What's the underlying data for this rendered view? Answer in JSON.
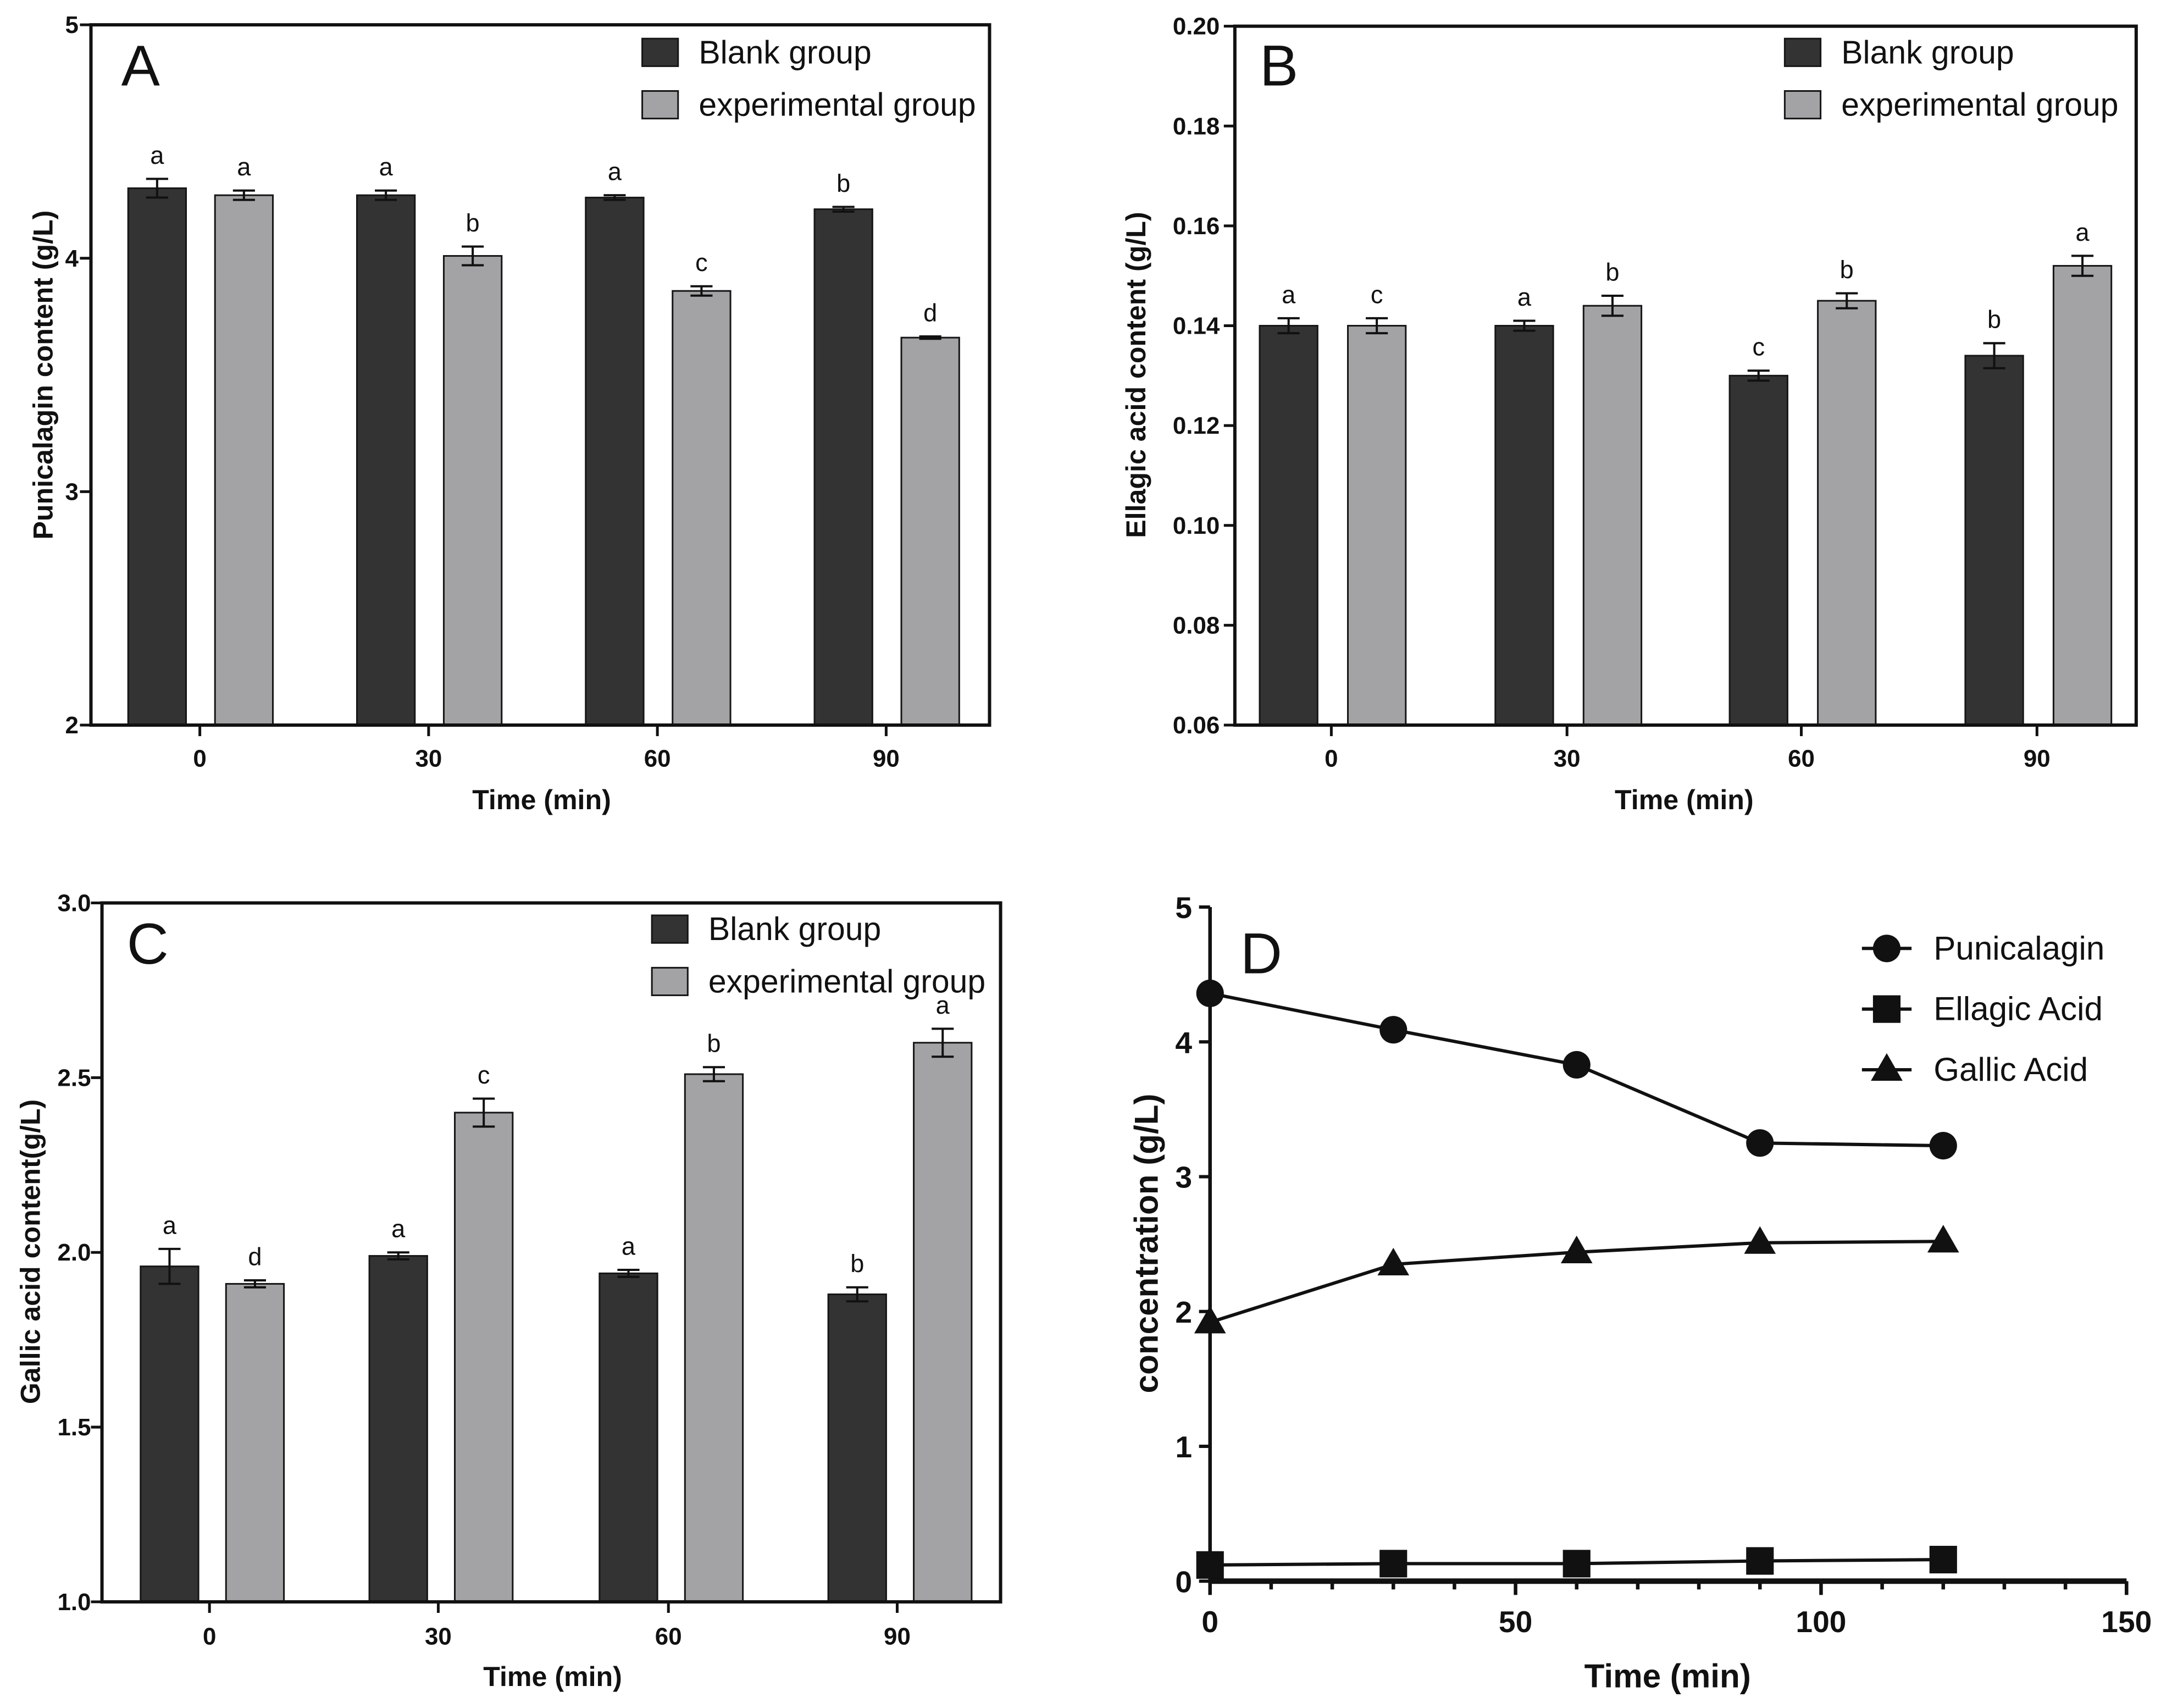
{
  "chart_data": [
    {
      "panel_label": "A",
      "type": "bar",
      "xlabel": "Time (min)",
      "ylabel": "Punicalagin content (g/L)",
      "ylim": [
        2,
        5
      ],
      "yticks": [
        "2",
        "3",
        "4",
        "5"
      ],
      "categories": [
        "0",
        "30",
        "60",
        "90"
      ],
      "series": [
        {
          "name": "Blank group",
          "color": "#333333",
          "values": [
            4.3,
            4.27,
            4.26,
            4.21
          ],
          "errors": [
            0.04,
            0.02,
            0.01,
            0.01
          ],
          "letters": [
            "a",
            "a",
            "a",
            "b"
          ]
        },
        {
          "name": "experimental group",
          "color": "#a3a3a5",
          "values": [
            4.27,
            4.01,
            3.86,
            3.66
          ],
          "errors": [
            0.02,
            0.04,
            0.02,
            0.005
          ],
          "letters": [
            "a",
            "b",
            "c",
            "d"
          ]
        }
      ]
    },
    {
      "panel_label": "B",
      "type": "bar",
      "xlabel": "Time (min)",
      "ylabel": "Ellagic acid content (g/L)",
      "ylim": [
        0.06,
        0.2
      ],
      "yticks": [
        "0.06",
        "0.08",
        "0.10",
        "0.12",
        "0.14",
        "0.16",
        "0.18",
        "0.20"
      ],
      "categories": [
        "0",
        "30",
        "60",
        "90"
      ],
      "series": [
        {
          "name": "Blank group",
          "color": "#333333",
          "values": [
            0.14,
            0.14,
            0.13,
            0.134
          ],
          "errors": [
            0.0015,
            0.001,
            0.001,
            0.0025
          ],
          "letters": [
            "a",
            "a",
            "c",
            "b"
          ]
        },
        {
          "name": "experimental group",
          "color": "#a3a3a5",
          "values": [
            0.14,
            0.144,
            0.145,
            0.152
          ],
          "errors": [
            0.0015,
            0.002,
            0.0015,
            0.002
          ],
          "letters": [
            "c",
            "b",
            "b",
            "a"
          ]
        }
      ]
    },
    {
      "panel_label": "C",
      "type": "bar",
      "xlabel": "Time (min)",
      "ylabel": "Gallic acid content(g/L)",
      "ylim": [
        1.0,
        3.0
      ],
      "yticks": [
        "1.0",
        "1.5",
        "2.0",
        "2.5",
        "3.0"
      ],
      "categories": [
        "0",
        "30",
        "60",
        "90"
      ],
      "series": [
        {
          "name": "Blank group",
          "color": "#333333",
          "values": [
            1.96,
            1.99,
            1.94,
            1.88
          ],
          "errors": [
            0.05,
            0.01,
            0.01,
            0.02
          ],
          "letters": [
            "a",
            "a",
            "a",
            "b"
          ]
        },
        {
          "name": "experimental group",
          "color": "#a3a3a5",
          "values": [
            1.91,
            2.4,
            2.51,
            2.6
          ],
          "errors": [
            0.01,
            0.04,
            0.02,
            0.04
          ],
          "letters": [
            "d",
            "c",
            "b",
            "a"
          ]
        }
      ]
    },
    {
      "panel_label": "D",
      "type": "line",
      "xlabel": "Time (min)",
      "ylabel": "concentration (g/L)",
      "xlim": [
        0,
        150
      ],
      "ylim": [
        0,
        5
      ],
      "xticks": [
        "0",
        "50",
        "100",
        "150"
      ],
      "yticks": [
        "0",
        "1",
        "2",
        "3",
        "4",
        "5"
      ],
      "x": [
        0,
        30,
        60,
        90,
        120
      ],
      "series": [
        {
          "name": "Punicalagin",
          "marker": "circle",
          "values": [
            4.36,
            4.09,
            3.83,
            3.25,
            3.23
          ]
        },
        {
          "name": "Ellagic Acid",
          "marker": "square",
          "values": [
            0.12,
            0.13,
            0.13,
            0.15,
            0.16
          ]
        },
        {
          "name": "Gallic Acid",
          "marker": "triangle",
          "values": [
            1.92,
            2.35,
            2.44,
            2.51,
            2.52
          ]
        }
      ]
    }
  ]
}
